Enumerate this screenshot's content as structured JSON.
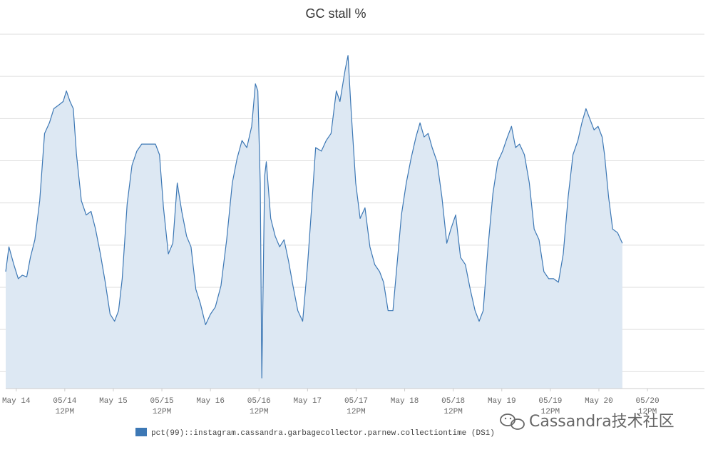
{
  "chart_data": {
    "type": "area",
    "title": "GC stall %",
    "xlabel": "",
    "ylabel": "",
    "x_ticks": [
      {
        "label": "May 14",
        "sub": ""
      },
      {
        "label": "05/14",
        "sub": "12PM"
      },
      {
        "label": "May 15",
        "sub": ""
      },
      {
        "label": "05/15",
        "sub": "12PM"
      },
      {
        "label": "May 16",
        "sub": ""
      },
      {
        "label": "05/16",
        "sub": "12PM"
      },
      {
        "label": "May 17",
        "sub": ""
      },
      {
        "label": "05/17",
        "sub": "12PM"
      },
      {
        "label": "May 18",
        "sub": ""
      },
      {
        "label": "05/18",
        "sub": "12PM"
      },
      {
        "label": "May 19",
        "sub": ""
      },
      {
        "label": "05/19",
        "sub": "12PM"
      },
      {
        "label": "May 20",
        "sub": ""
      },
      {
        "label": "05/20",
        "sub": "12PM"
      }
    ],
    "x_unit": "hours since May 14 00:00",
    "xlim": [
      -2.6,
      168.5
    ],
    "ylim": [
      0,
      100
    ],
    "grid": true,
    "legend_position": "bottom",
    "series": [
      {
        "name": "pct(99)::instagram.cassandra.garbagecollector.parnew.collectiontime (DS1)",
        "color": "#3d78b5",
        "fill": "#dde8f3",
        "points": [
          [
            -2.6,
            33
          ],
          [
            -1.8,
            40
          ],
          [
            -0.6,
            35
          ],
          [
            0.5,
            31
          ],
          [
            1.5,
            32
          ],
          [
            2.6,
            31.5
          ],
          [
            3.5,
            37
          ],
          [
            4.6,
            42
          ],
          [
            5.8,
            53
          ],
          [
            7.0,
            72
          ],
          [
            8.2,
            75
          ],
          [
            9.3,
            79
          ],
          [
            10.5,
            80
          ],
          [
            11.6,
            81
          ],
          [
            12.4,
            84
          ],
          [
            13.3,
            81
          ],
          [
            14.1,
            79
          ],
          [
            14.9,
            66
          ],
          [
            16.1,
            53
          ],
          [
            17.3,
            49
          ],
          [
            18.5,
            50
          ],
          [
            19.6,
            45
          ],
          [
            20.8,
            38
          ],
          [
            22.0,
            30
          ],
          [
            23.2,
            21
          ],
          [
            24.3,
            19
          ],
          [
            25.3,
            22
          ],
          [
            26.2,
            31
          ],
          [
            27.4,
            52
          ],
          [
            28.6,
            63
          ],
          [
            29.8,
            67
          ],
          [
            31.0,
            69
          ],
          [
            32.2,
            69
          ],
          [
            33.4,
            69
          ],
          [
            34.4,
            69
          ],
          [
            35.4,
            66
          ],
          [
            36.4,
            51
          ],
          [
            37.6,
            38
          ],
          [
            38.7,
            41
          ],
          [
            39.8,
            58
          ],
          [
            40.9,
            50
          ],
          [
            42.1,
            43
          ],
          [
            43.2,
            40
          ],
          [
            44.4,
            28
          ],
          [
            45.5,
            24
          ],
          [
            46.8,
            18
          ],
          [
            48.0,
            21
          ],
          [
            49.2,
            23
          ],
          [
            50.6,
            29
          ],
          [
            52.0,
            42
          ],
          [
            53.4,
            58
          ],
          [
            54.6,
            65
          ],
          [
            55.8,
            70
          ],
          [
            57.0,
            68
          ],
          [
            58.2,
            74
          ],
          [
            59.1,
            86
          ],
          [
            59.7,
            84
          ],
          [
            60.3,
            58
          ],
          [
            60.7,
            3
          ],
          [
            61.4,
            60
          ],
          [
            61.8,
            64
          ],
          [
            62.9,
            48
          ],
          [
            64.0,
            43
          ],
          [
            65.1,
            40
          ],
          [
            66.2,
            42
          ],
          [
            67.3,
            36
          ],
          [
            68.4,
            29
          ],
          [
            69.6,
            22
          ],
          [
            70.8,
            19
          ],
          [
            72.0,
            35
          ],
          [
            73.0,
            51
          ],
          [
            74.0,
            68
          ],
          [
            75.4,
            67
          ],
          [
            76.6,
            70
          ],
          [
            77.8,
            72
          ],
          [
            79.1,
            84
          ],
          [
            80.0,
            81
          ],
          [
            81.3,
            90
          ],
          [
            82.0,
            94
          ],
          [
            82.8,
            78
          ],
          [
            83.9,
            58
          ],
          [
            85.0,
            48
          ],
          [
            86.2,
            51
          ],
          [
            87.4,
            40
          ],
          [
            88.6,
            35
          ],
          [
            89.8,
            33
          ],
          [
            90.8,
            30
          ],
          [
            91.9,
            22
          ],
          [
            93.1,
            22
          ],
          [
            94.2,
            36
          ],
          [
            95.2,
            49
          ],
          [
            96.4,
            58
          ],
          [
            97.6,
            65
          ],
          [
            98.8,
            71
          ],
          [
            99.8,
            75
          ],
          [
            100.8,
            71
          ],
          [
            101.8,
            72
          ],
          [
            102.8,
            68
          ],
          [
            104.0,
            64
          ],
          [
            105.2,
            54
          ],
          [
            106.4,
            41
          ],
          [
            107.4,
            45
          ],
          [
            108.6,
            49
          ],
          [
            109.8,
            37
          ],
          [
            111.0,
            35
          ],
          [
            112.2,
            28
          ],
          [
            113.4,
            22
          ],
          [
            114.4,
            19
          ],
          [
            115.4,
            22
          ],
          [
            116.6,
            40
          ],
          [
            117.8,
            55
          ],
          [
            119.0,
            64
          ],
          [
            120.2,
            67
          ],
          [
            121.4,
            71
          ],
          [
            122.4,
            74
          ],
          [
            123.4,
            68
          ],
          [
            124.4,
            69
          ],
          [
            125.6,
            66
          ],
          [
            126.8,
            58
          ],
          [
            128.0,
            45
          ],
          [
            129.2,
            42
          ],
          [
            130.4,
            33
          ],
          [
            131.6,
            31
          ],
          [
            132.8,
            31
          ],
          [
            134.0,
            30
          ],
          [
            135.2,
            38
          ],
          [
            136.4,
            54
          ],
          [
            137.6,
            66
          ],
          [
            138.8,
            70
          ],
          [
            139.8,
            75
          ],
          [
            140.8,
            79
          ],
          [
            141.8,
            76
          ],
          [
            142.8,
            73
          ],
          [
            143.8,
            74
          ],
          [
            144.8,
            71
          ],
          [
            145.4,
            66
          ],
          [
            146.4,
            54
          ],
          [
            147.4,
            45
          ],
          [
            148.6,
            44
          ],
          [
            149.8,
            41
          ]
        ]
      }
    ]
  },
  "watermark": {
    "text": "Cassandra技术社区",
    "icon": "wechat-icon"
  }
}
